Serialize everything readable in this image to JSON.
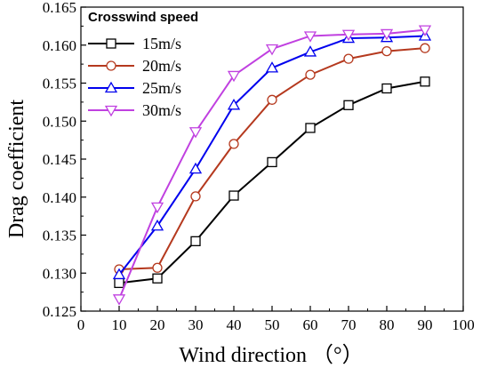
{
  "chart_data": {
    "type": "line",
    "xlabel": "Wind direction （°）",
    "ylabel": "Drag coefficient",
    "xlim": [
      0,
      100
    ],
    "ylim": [
      0.125,
      0.165
    ],
    "xticks": [
      0,
      10,
      20,
      30,
      40,
      50,
      60,
      70,
      80,
      90,
      100
    ],
    "yticks": [
      "0.125",
      "0.130",
      "0.135",
      "0.140",
      "0.145",
      "0.150",
      "0.155",
      "0.160",
      "0.165"
    ],
    "x": [
      10,
      20,
      30,
      40,
      50,
      60,
      70,
      80,
      90
    ],
    "legend": {
      "title": "Crosswind speed",
      "placement": "top-left"
    },
    "grid": false,
    "series": [
      {
        "name": "15m/s",
        "color": "#000000",
        "marker": "square",
        "values": [
          0.1287,
          0.1293,
          0.1342,
          0.1402,
          0.1446,
          0.1491,
          0.1521,
          0.1543,
          0.1552
        ]
      },
      {
        "name": "20m/s",
        "color": "#b5391e",
        "marker": "circle",
        "values": [
          0.1305,
          0.1307,
          0.1401,
          0.147,
          0.1528,
          0.1561,
          0.1582,
          0.1592,
          0.1596
        ]
      },
      {
        "name": "25m/s",
        "color": "#0000ee",
        "marker": "triangle-up",
        "values": [
          0.1298,
          0.1362,
          0.1437,
          0.1521,
          0.157,
          0.1591,
          0.1609,
          0.161,
          0.1612
        ]
      },
      {
        "name": "30m/s",
        "color": "#c040e0",
        "marker": "triangle-down",
        "values": [
          0.1266,
          0.1387,
          0.1486,
          0.156,
          0.1595,
          0.1612,
          0.1614,
          0.1615,
          0.162
        ]
      }
    ]
  }
}
